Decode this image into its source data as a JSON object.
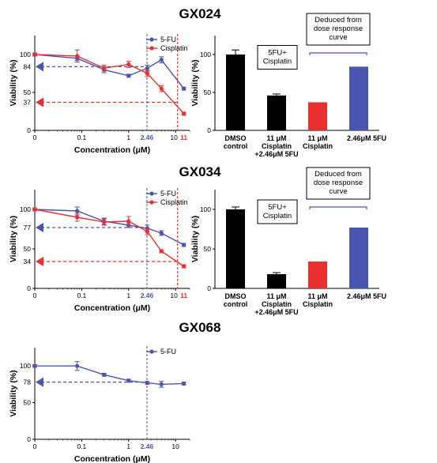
{
  "chart_data": [
    {
      "type": "line",
      "title": "GX024",
      "xlabel": "Concentration (μM)",
      "ylabel": "Viability (%)",
      "xscale": "log",
      "xlim": [
        0.01,
        20
      ],
      "ylim": [
        0,
        125
      ],
      "grid": false,
      "legend_position": "top-right",
      "x_tick_labels": [
        "0",
        "0.1",
        "1",
        "10"
      ],
      "y_tick_labels": [
        "0",
        "50",
        "100"
      ],
      "series": [
        {
          "name": "5-FU",
          "color": "#4a55b0",
          "points": [
            [
              0.01,
              100
            ],
            [
              0.08,
              95
            ],
            [
              0.3,
              80
            ],
            [
              1,
              72
            ],
            [
              2.5,
              82
            ],
            [
              5,
              93
            ],
            [
              15,
              55
            ]
          ],
          "errors": [
            2,
            3,
            4,
            2,
            4,
            4,
            2
          ]
        },
        {
          "name": "Cisplatin",
          "color": "#e83030",
          "points": [
            [
              0.01,
              100
            ],
            [
              0.08,
              98
            ],
            [
              0.3,
              82
            ],
            [
              1,
              87
            ],
            [
              2.5,
              75
            ],
            [
              5,
              55
            ],
            [
              15,
              22
            ]
          ],
          "errors": [
            2,
            8,
            4,
            4,
            4,
            4,
            2
          ]
        }
      ],
      "annotations": [
        {
          "series": 0,
          "x": 2.46,
          "y": 84,
          "x_label": "2.46",
          "y_label": "84"
        },
        {
          "series": 1,
          "x": 11,
          "y": 37,
          "x_label": "11",
          "y_label": "37"
        }
      ],
      "x_extra_label": "10",
      "bar_chart": {
        "type": "bar",
        "ylabel": "Viability (%)",
        "ylim": [
          0,
          125
        ],
        "y_tick_labels": [
          "0",
          "50",
          "100"
        ],
        "categories": [
          {
            "lines": [
              "DMSO",
              "control"
            ],
            "value": 100,
            "error": 6,
            "color": "#000000"
          },
          {
            "lines": [
              "11 μM",
              "Cisplatin",
              "+2.46μM 5FU"
            ],
            "value": 46,
            "error": 2,
            "color": "#000000"
          },
          {
            "lines": [
              "11 μM",
              "Cisplatin"
            ],
            "value": 37,
            "error": 0,
            "color": "#e83030"
          },
          {
            "lines": [
              "2.46μM 5FU"
            ],
            "value": 84,
            "error": 0,
            "color": "#4a55b0"
          }
        ],
        "combo_note_lines": [
          "5FU+",
          "Cisplatin"
        ],
        "deduced_note_lines": [
          "Deduced from",
          "dose response",
          "curve"
        ]
      }
    },
    {
      "type": "line",
      "title": "GX034",
      "xlabel": "Concentration (μM)",
      "ylabel": "Viability (%)",
      "xscale": "log",
      "xlim": [
        0.01,
        20
      ],
      "ylim": [
        0,
        125
      ],
      "grid": false,
      "legend_position": "top-right",
      "x_tick_labels": [
        "0",
        "0.1",
        "1",
        "10"
      ],
      "y_tick_labels": [
        "0",
        "50",
        "100"
      ],
      "series": [
        {
          "name": "5-FU",
          "color": "#4a55b0",
          "points": [
            [
              0.01,
              100
            ],
            [
              0.08,
              98
            ],
            [
              0.3,
              85
            ],
            [
              1,
              80
            ],
            [
              2.5,
              76
            ],
            [
              5,
              70
            ],
            [
              15,
              55
            ]
          ],
          "errors": [
            2,
            5,
            4,
            3,
            4,
            3,
            2
          ]
        },
        {
          "name": "Cisplatin",
          "color": "#e83030",
          "points": [
            [
              0.01,
              100
            ],
            [
              0.08,
              90
            ],
            [
              0.3,
              84
            ],
            [
              1,
              85
            ],
            [
              2.5,
              72
            ],
            [
              5,
              47
            ],
            [
              15,
              28
            ]
          ],
          "errors": [
            2,
            5,
            4,
            6,
            4,
            2,
            2
          ]
        }
      ],
      "annotations": [
        {
          "series": 0,
          "x": 2.46,
          "y": 77,
          "x_label": "2.46",
          "y_label": "77"
        },
        {
          "series": 1,
          "x": 11,
          "y": 34,
          "x_label": "11",
          "y_label": "34"
        }
      ],
      "x_extra_label": "10",
      "bar_chart": {
        "type": "bar",
        "ylabel": "Viability (%)",
        "ylim": [
          0,
          125
        ],
        "y_tick_labels": [
          "0",
          "50",
          "100"
        ],
        "categories": [
          {
            "lines": [
              "DMSO",
              "control"
            ],
            "value": 100,
            "error": 3,
            "color": "#000000"
          },
          {
            "lines": [
              "11 μM",
              "Cisplatin",
              "+2.46μM 5FU"
            ],
            "value": 18,
            "error": 2,
            "color": "#000000"
          },
          {
            "lines": [
              "11 μM",
              "Cisplatin"
            ],
            "value": 34,
            "error": 0,
            "color": "#e83030"
          },
          {
            "lines": [
              "2.46μM 5FU"
            ],
            "value": 77,
            "error": 0,
            "color": "#4a55b0"
          }
        ],
        "combo_note_lines": [
          "5FU+",
          "Cisplatin"
        ],
        "deduced_note_lines": [
          "Deduced from",
          "dose response",
          "curve"
        ]
      }
    },
    {
      "type": "line",
      "title": "GX068",
      "xlabel": "Concentration (μM)",
      "ylabel": "Viability (%)",
      "xscale": "log",
      "xlim": [
        0.01,
        20
      ],
      "ylim": [
        0,
        125
      ],
      "grid": false,
      "legend_position": "top-right",
      "x_tick_labels": [
        "0",
        "0.1",
        "1",
        "10"
      ],
      "y_tick_labels": [
        "0",
        "50",
        "100"
      ],
      "series": [
        {
          "name": "5-FU",
          "color": "#4a55b0",
          "points": [
            [
              0.01,
              100
            ],
            [
              0.08,
              100
            ],
            [
              0.3,
              88
            ],
            [
              1,
              80
            ],
            [
              2.5,
              77
            ],
            [
              5,
              75
            ],
            [
              15,
              76
            ]
          ],
          "errors": [
            2,
            6,
            2,
            2,
            2,
            4,
            2
          ]
        }
      ],
      "annotations": [
        {
          "series": 0,
          "x": 2.46,
          "y": 78,
          "x_label": "2.46",
          "y_label": "78"
        }
      ],
      "x_extra_label": "",
      "bar_chart": null
    }
  ]
}
